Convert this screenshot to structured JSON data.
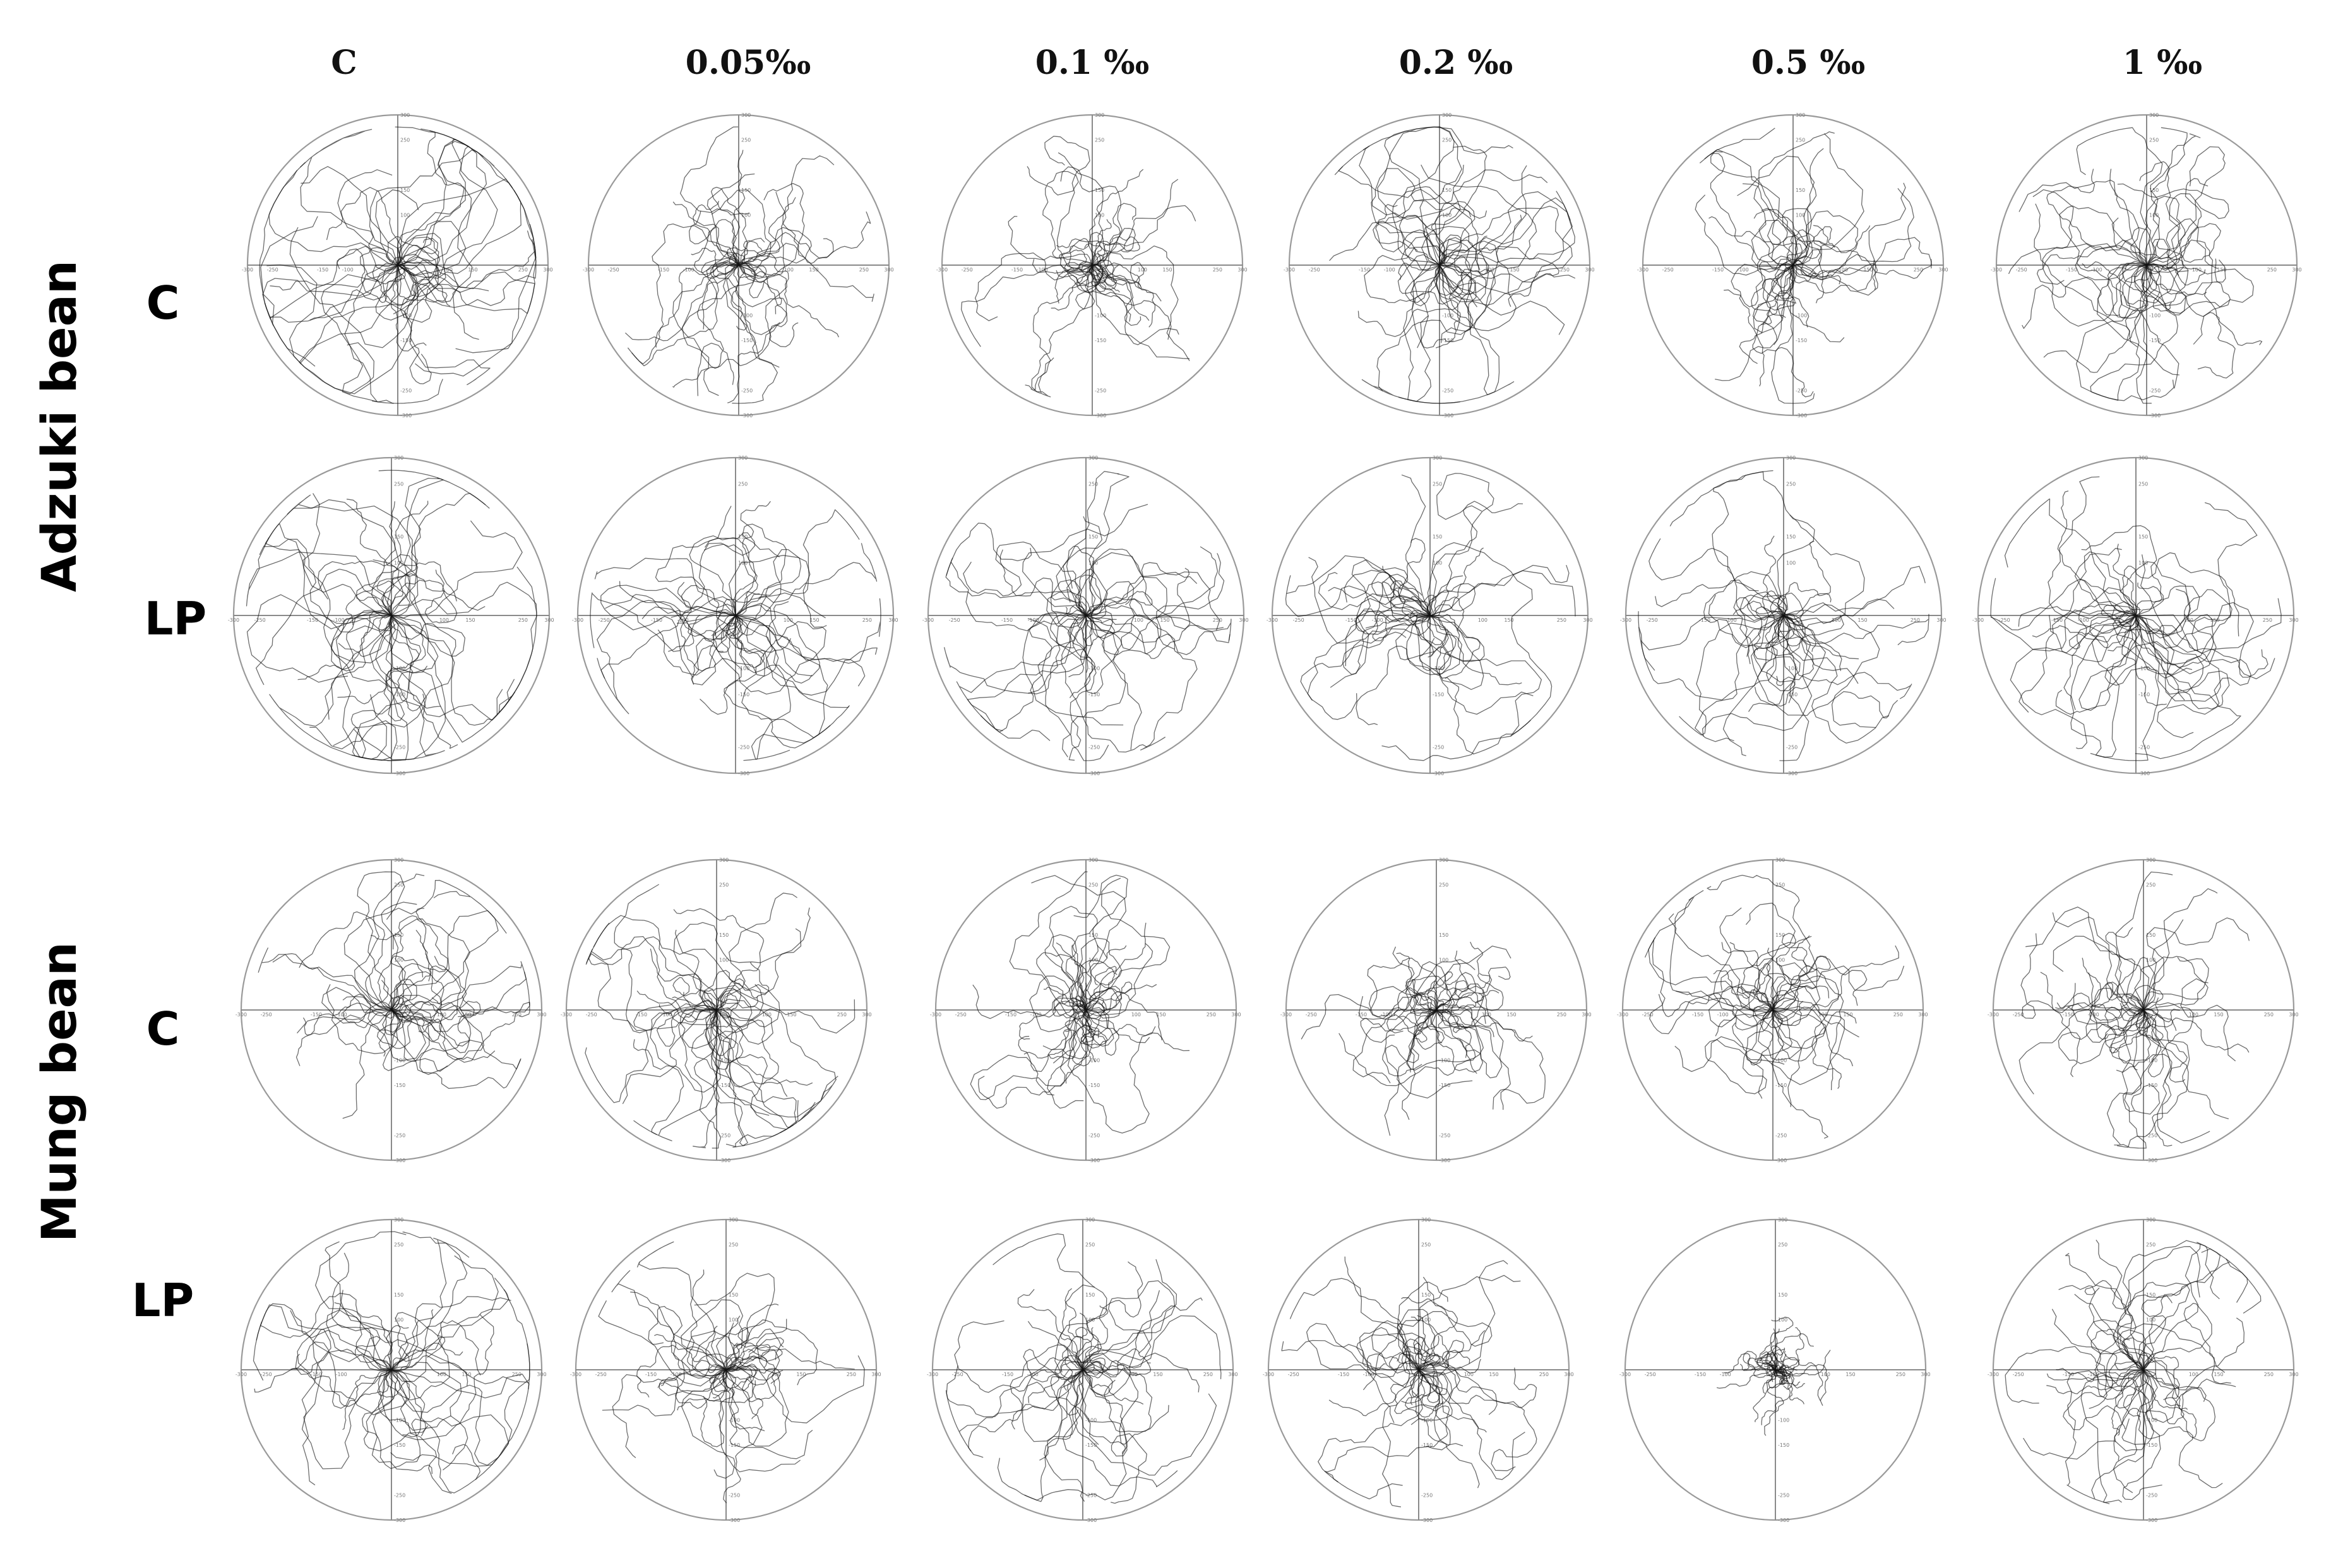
{
  "chart_data": {
    "type": "scatter",
    "columns": [
      "C",
      "0.05‰",
      "0.1 ‰",
      "0.2 ‰",
      "0.5 ‰",
      "1 ‰"
    ],
    "groups": [
      {
        "label": "Adzuki bean",
        "rows": [
          "C",
          "LP"
        ]
      },
      {
        "label": "Mung bean",
        "rows": [
          "C",
          "LP"
        ]
      }
    ],
    "axis_range": [
      -300,
      300
    ],
    "axis_ticks": [
      -300,
      -250,
      -150,
      -100,
      100,
      150,
      250,
      300
    ],
    "grid": false,
    "spread": [
      [
        [
          110,
          60,
          55,
          85,
          65,
          70
        ],
        [
          115,
          80,
          75,
          75,
          70,
          80
        ]
      ],
      [
        [
          70,
          80,
          65,
          55,
          70,
          60
        ],
        [
          85,
          70,
          70,
          65,
          25,
          70
        ]
      ]
    ]
  }
}
